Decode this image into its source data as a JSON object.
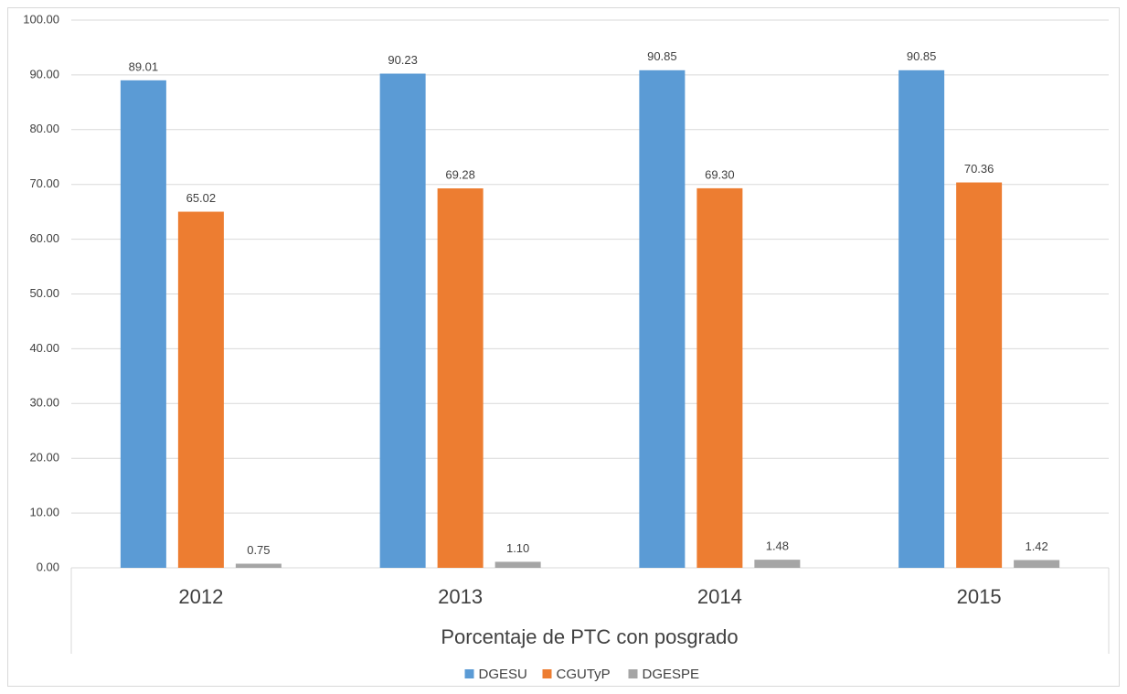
{
  "chart_data": {
    "type": "bar",
    "xlabel": "Porcentaje de PTC con posgrado",
    "categories": [
      "2012",
      "2013",
      "2014",
      "2015"
    ],
    "series": [
      {
        "name": "DGESU",
        "color": "#5B9BD5",
        "values": [
          89.01,
          90.23,
          90.85,
          90.85
        ],
        "value_labels": [
          "89.01",
          "90.23",
          "90.85",
          "90.85"
        ]
      },
      {
        "name": "CGUTyP",
        "color": "#ED7D31",
        "values": [
          65.02,
          69.28,
          69.3,
          70.36
        ],
        "value_labels": [
          "65.02",
          "69.28",
          "69.30",
          "70.36"
        ]
      },
      {
        "name": "DGESPE",
        "color": "#A5A5A5",
        "values": [
          0.75,
          1.1,
          1.48,
          1.42
        ],
        "value_labels": [
          "0.75",
          "1.10",
          "1.48",
          "1.42"
        ]
      }
    ],
    "ylim": [
      0,
      100
    ],
    "yticks": [
      {
        "value": 0,
        "label": "0.00"
      },
      {
        "value": 10,
        "label": "10.00"
      },
      {
        "value": 20,
        "label": "20.00"
      },
      {
        "value": 30,
        "label": "30.00"
      },
      {
        "value": 40,
        "label": "40.00"
      },
      {
        "value": 50,
        "label": "50.00"
      },
      {
        "value": 60,
        "label": "60.00"
      },
      {
        "value": 70,
        "label": "70.00"
      },
      {
        "value": 80,
        "label": "80.00"
      },
      {
        "value": 90,
        "label": "90.00"
      },
      {
        "value": 100,
        "label": "100.00"
      }
    ],
    "grid": true,
    "legend": "bottom"
  }
}
